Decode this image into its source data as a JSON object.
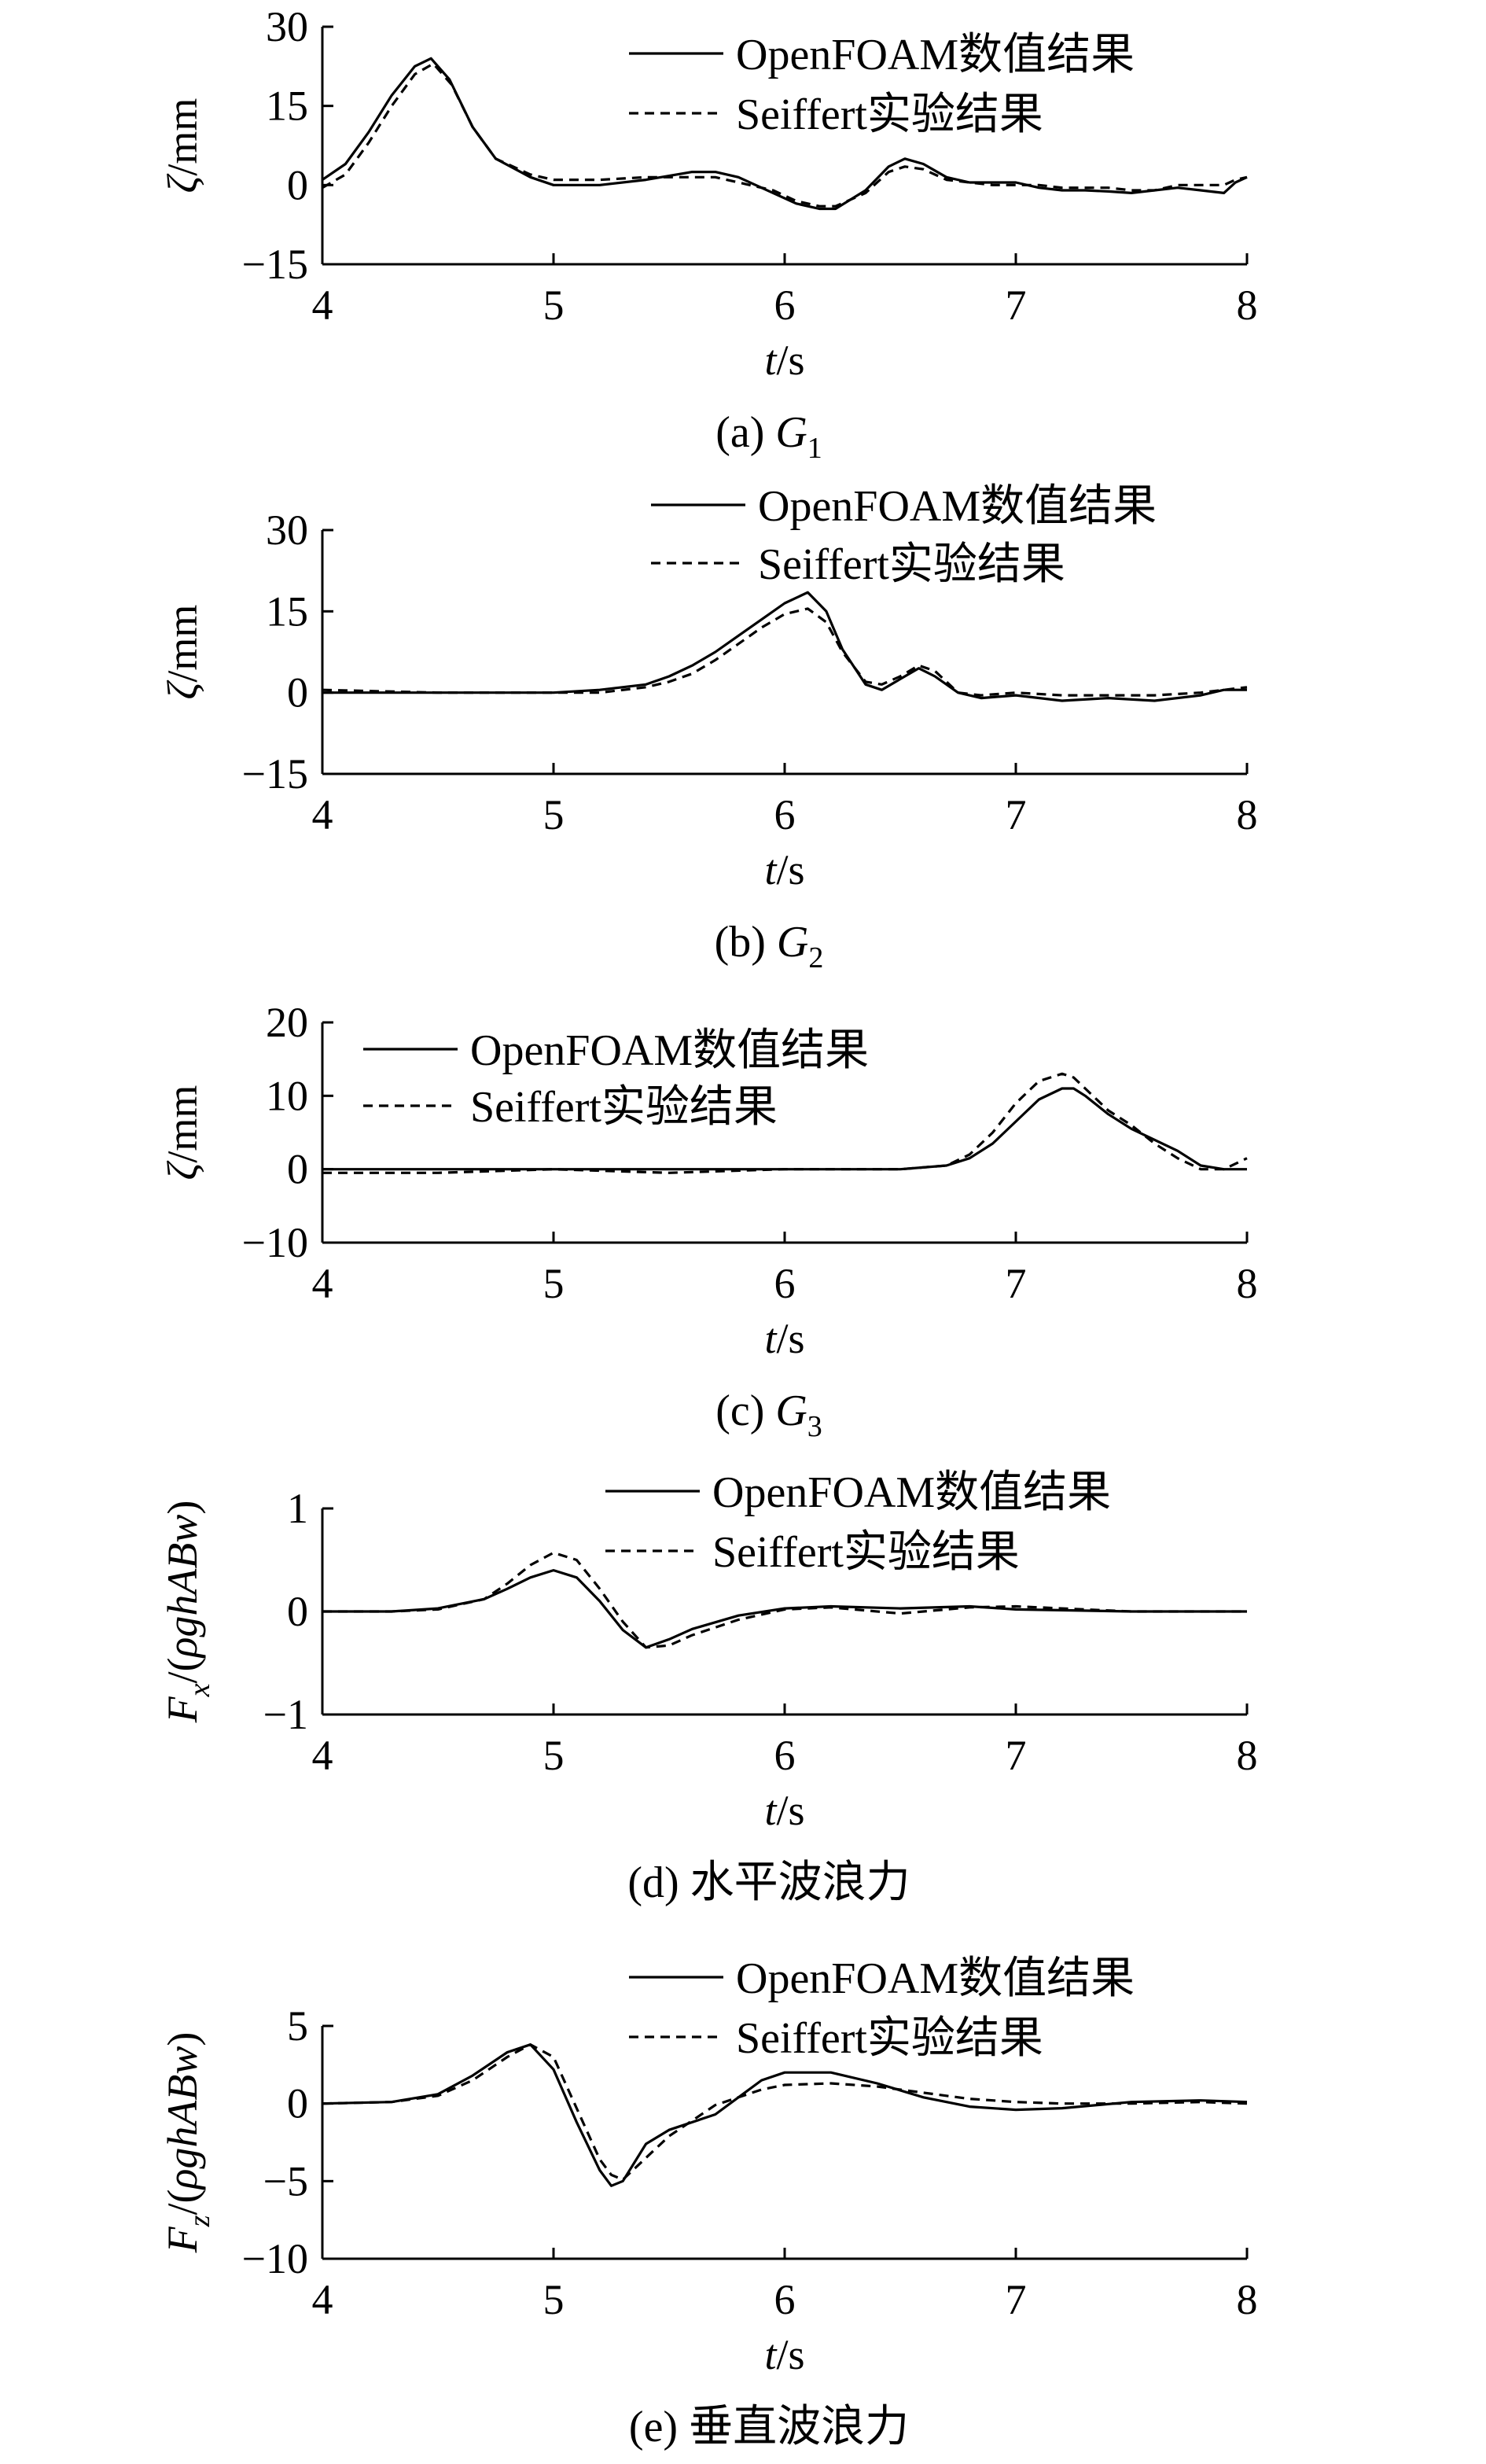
{
  "series_names": [
    "OpenFOAM数值结果",
    "Seiffert实验结果"
  ],
  "chart_data": [
    {
      "type": "line",
      "caption": "(a) G1",
      "caption_parts": [
        "(a) ",
        "G",
        "1"
      ],
      "ylabel_parts": [
        "ζ",
        "/mm"
      ],
      "xlabel_parts": [
        "t",
        "/s"
      ],
      "xlim": [
        4,
        8
      ],
      "ylim": [
        -15,
        30
      ],
      "xticks": [
        "4",
        "5",
        "6",
        "7",
        "8"
      ],
      "yticks": [
        "30",
        "15",
        "0",
        "−15"
      ],
      "series": [
        {
          "name": "OpenFOAM数值结果",
          "style": "solid",
          "x": [
            4.0,
            4.1,
            4.2,
            4.3,
            4.4,
            4.47,
            4.55,
            4.65,
            4.75,
            4.9,
            5.0,
            5.2,
            5.4,
            5.6,
            5.7,
            5.8,
            5.95,
            6.05,
            6.15,
            6.22,
            6.35,
            6.45,
            6.52,
            6.6,
            6.7,
            6.8,
            6.9,
            7.0,
            7.1,
            7.2,
            7.3,
            7.4,
            7.5,
            7.6,
            7.7,
            7.8,
            7.9,
            7.95,
            8.0
          ],
          "y": [
            1,
            4,
            10,
            17,
            22.5,
            24,
            20,
            11,
            5,
            1.5,
            0,
            0,
            1,
            2.5,
            2.5,
            1.5,
            -1.5,
            -3.5,
            -4.5,
            -4.5,
            -1,
            3.5,
            5,
            4,
            1.5,
            0.5,
            0.5,
            0.5,
            -0.5,
            -1,
            -1,
            -1.2,
            -1.5,
            -1,
            -0.5,
            -1,
            -1.5,
            0.5,
            1.5
          ]
        },
        {
          "name": "Seiffert实验结果",
          "style": "dashed",
          "x": [
            4.0,
            4.1,
            4.2,
            4.3,
            4.4,
            4.48,
            4.56,
            4.65,
            4.75,
            4.9,
            5.0,
            5.2,
            5.4,
            5.6,
            5.7,
            5.8,
            5.95,
            6.05,
            6.15,
            6.22,
            6.35,
            6.45,
            6.52,
            6.6,
            6.7,
            6.8,
            6.9,
            7.0,
            7.1,
            7.2,
            7.3,
            7.4,
            7.5,
            7.6,
            7.7,
            7.8,
            7.9,
            7.95,
            8.0
          ],
          "y": [
            -0.5,
            2,
            8,
            15,
            21,
            23,
            19,
            11,
            5,
            2,
            1,
            1,
            1.5,
            1.5,
            1.5,
            0.5,
            -1,
            -3,
            -4,
            -4,
            -1.5,
            2.5,
            3.5,
            3,
            1,
            0.5,
            0,
            0,
            0,
            -0.5,
            -0.5,
            -0.5,
            -1,
            -1,
            0,
            0,
            0,
            1,
            1.5
          ]
        }
      ]
    },
    {
      "type": "line",
      "caption": "(b) G2",
      "caption_parts": [
        "(b) ",
        "G",
        "2"
      ],
      "ylabel_parts": [
        "ζ",
        "/mm"
      ],
      "xlabel_parts": [
        "t",
        "/s"
      ],
      "xlim": [
        4,
        8
      ],
      "ylim": [
        -15,
        30
      ],
      "xticks": [
        "4",
        "5",
        "6",
        "7",
        "8"
      ],
      "yticks": [
        "30",
        "15",
        "0",
        "−15"
      ],
      "series": [
        {
          "name": "OpenFOAM数值结果",
          "style": "solid",
          "x": [
            4.0,
            4.5,
            5.0,
            5.2,
            5.4,
            5.5,
            5.6,
            5.7,
            5.8,
            5.9,
            6.0,
            6.1,
            6.18,
            6.25,
            6.35,
            6.42,
            6.5,
            6.58,
            6.65,
            6.75,
            6.85,
            7.0,
            7.2,
            7.4,
            7.6,
            7.8,
            7.9,
            8.0
          ],
          "y": [
            0,
            0,
            0,
            0.5,
            1.5,
            3,
            5,
            7.5,
            10.5,
            13.5,
            16.5,
            18.5,
            15,
            8,
            1.5,
            0.5,
            2.5,
            4.5,
            3,
            0,
            -1,
            -0.5,
            -1.5,
            -1,
            -1.5,
            -0.5,
            0.5,
            0.5
          ]
        },
        {
          "name": "Seiffert实验结果",
          "style": "dashed",
          "x": [
            4.0,
            4.5,
            5.0,
            5.2,
            5.4,
            5.5,
            5.6,
            5.7,
            5.8,
            5.9,
            6.0,
            6.1,
            6.18,
            6.25,
            6.35,
            6.42,
            6.5,
            6.58,
            6.65,
            6.75,
            6.85,
            7.0,
            7.2,
            7.4,
            7.6,
            7.8,
            7.9,
            8.0
          ],
          "y": [
            0.5,
            0,
            0,
            0,
            1,
            2,
            3.5,
            6,
            9,
            12,
            14.5,
            15.5,
            13,
            7.5,
            2,
            1.5,
            3,
            5,
            4,
            0,
            -0.5,
            0,
            -0.5,
            -0.5,
            -0.5,
            0,
            0.5,
            1
          ]
        }
      ]
    },
    {
      "type": "line",
      "caption": "(c) G3",
      "caption_parts": [
        "(c) ",
        "G",
        "3"
      ],
      "ylabel_parts": [
        "ζ",
        "/mm"
      ],
      "xlabel_parts": [
        "t",
        "/s"
      ],
      "xlim": [
        4,
        8
      ],
      "ylim": [
        -10,
        20
      ],
      "xticks": [
        "4",
        "5",
        "6",
        "7",
        "8"
      ],
      "yticks": [
        "20",
        "10",
        "0",
        "−10"
      ],
      "series": [
        {
          "name": "OpenFOAM数值结果",
          "style": "solid",
          "x": [
            4.0,
            4.5,
            5.0,
            5.5,
            6.0,
            6.5,
            6.7,
            6.8,
            6.9,
            7.0,
            7.1,
            7.2,
            7.25,
            7.3,
            7.4,
            7.5,
            7.6,
            7.7,
            7.8,
            7.9,
            8.0
          ],
          "y": [
            0,
            0,
            0,
            0,
            0,
            0,
            0.5,
            1.5,
            3.5,
            6.5,
            9.5,
            11,
            11,
            10,
            7.5,
            5.5,
            4,
            2.5,
            0.5,
            0,
            0
          ]
        },
        {
          "name": "Seiffert实验结果",
          "style": "dashed",
          "x": [
            4.0,
            4.5,
            5.0,
            5.5,
            6.0,
            6.5,
            6.7,
            6.8,
            6.9,
            7.0,
            7.1,
            7.2,
            7.25,
            7.3,
            7.4,
            7.5,
            7.6,
            7.7,
            7.8,
            7.9,
            8.0
          ],
          "y": [
            -0.5,
            -0.5,
            0,
            -0.5,
            0,
            0,
            0.5,
            2,
            5,
            9,
            12,
            13,
            12.5,
            11,
            8,
            6,
            3.5,
            1.5,
            0,
            0,
            1.5
          ]
        }
      ]
    },
    {
      "type": "line",
      "caption": "(d) 水平波浪力",
      "caption_parts": [
        "(d) ",
        "水平波浪力"
      ],
      "ylabel_parts": [
        "F",
        "x",
        "/(",
        "ρghABw",
        ")"
      ],
      "xlabel_parts": [
        "t",
        "/s"
      ],
      "xlim": [
        4,
        8
      ],
      "ylim": [
        -1,
        1
      ],
      "xticks": [
        "4",
        "5",
        "6",
        "7",
        "8"
      ],
      "yticks": [
        "1",
        "0",
        "−1"
      ],
      "series": [
        {
          "name": "OpenFOAM数值结果",
          "style": "solid",
          "x": [
            4.0,
            4.3,
            4.5,
            4.7,
            4.8,
            4.9,
            5.0,
            5.1,
            5.2,
            5.3,
            5.4,
            5.5,
            5.6,
            5.8,
            6.0,
            6.2,
            6.5,
            6.8,
            7.0,
            7.5,
            8.0
          ],
          "y": [
            0,
            0,
            0.03,
            0.12,
            0.22,
            0.33,
            0.4,
            0.33,
            0.1,
            -0.18,
            -0.35,
            -0.27,
            -0.17,
            -0.04,
            0.03,
            0.05,
            0.03,
            0.05,
            0.02,
            0,
            0
          ]
        },
        {
          "name": "Seiffert实验结果",
          "style": "dashed",
          "x": [
            4.0,
            4.3,
            4.5,
            4.7,
            4.8,
            4.9,
            5.0,
            5.1,
            5.2,
            5.3,
            5.4,
            5.5,
            5.6,
            5.8,
            6.0,
            6.2,
            6.5,
            6.8,
            7.0,
            7.5,
            8.0
          ],
          "y": [
            0,
            0,
            0.02,
            0.12,
            0.27,
            0.45,
            0.57,
            0.5,
            0.22,
            -0.1,
            -0.35,
            -0.33,
            -0.23,
            -0.08,
            0.02,
            0.04,
            -0.02,
            0.04,
            0.05,
            0,
            0
          ]
        }
      ]
    },
    {
      "type": "line",
      "caption": "(e) 垂直波浪力",
      "caption_parts": [
        "(e) ",
        "垂直波浪力"
      ],
      "ylabel_parts": [
        "F",
        "z",
        "/(",
        "ρghABw",
        ")"
      ],
      "xlabel_parts": [
        "t",
        "/s"
      ],
      "xlim": [
        4,
        8
      ],
      "ylim": [
        -10,
        5
      ],
      "xticks": [
        "4",
        "5",
        "6",
        "7",
        "8"
      ],
      "yticks": [
        "5",
        "0",
        "−5",
        "−10"
      ],
      "series": [
        {
          "name": "OpenFOAM数值结果",
          "style": "solid",
          "x": [
            4.0,
            4.3,
            4.5,
            4.65,
            4.8,
            4.9,
            5.0,
            5.1,
            5.2,
            5.25,
            5.3,
            5.4,
            5.5,
            5.7,
            5.9,
            6.0,
            6.2,
            6.4,
            6.6,
            6.8,
            7.0,
            7.2,
            7.5,
            7.8,
            8.0
          ],
          "y": [
            0,
            0.1,
            0.6,
            1.8,
            3.3,
            3.8,
            2.2,
            -1.2,
            -4.3,
            -5.3,
            -5,
            -2.6,
            -1.7,
            -0.7,
            1.5,
            2,
            2,
            1.3,
            0.4,
            -0.2,
            -0.4,
            -0.3,
            0.1,
            0.2,
            0.1
          ]
        },
        {
          "name": "Seiffert实验结果",
          "style": "dashed",
          "x": [
            4.0,
            4.3,
            4.5,
            4.65,
            4.8,
            4.9,
            5.0,
            5.1,
            5.2,
            5.25,
            5.3,
            5.4,
            5.5,
            5.7,
            5.9,
            6.0,
            6.2,
            6.4,
            6.6,
            6.8,
            7.0,
            7.2,
            7.5,
            7.8,
            8.0
          ],
          "y": [
            0,
            0.1,
            0.5,
            1.5,
            3,
            3.8,
            3,
            -0.3,
            -3.6,
            -4.6,
            -4.9,
            -3.5,
            -2.1,
            -0.1,
            0.9,
            1.2,
            1.3,
            1.1,
            0.7,
            0.3,
            0.1,
            0,
            0,
            0.1,
            0
          ]
        }
      ]
    }
  ]
}
